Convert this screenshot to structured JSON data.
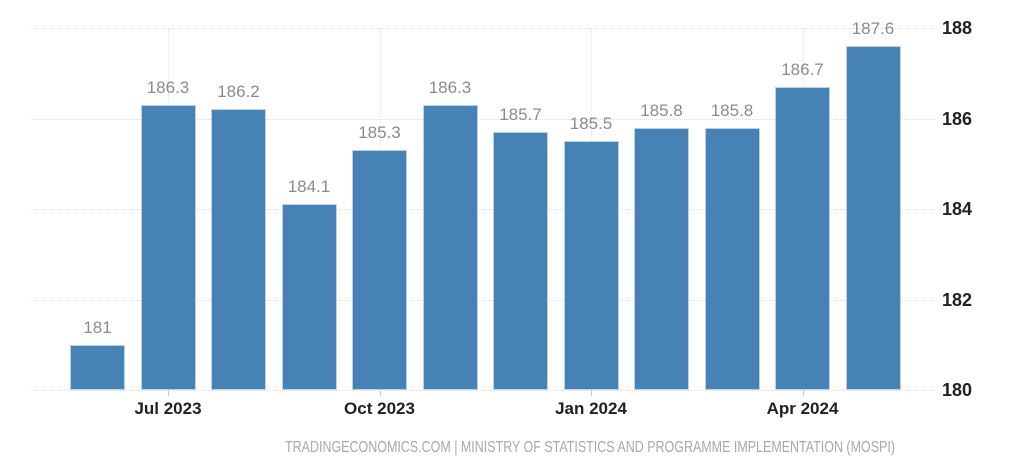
{
  "chart_data": {
    "type": "bar",
    "title": "",
    "xlabel": "",
    "ylabel": "",
    "grid": true,
    "legend": "none",
    "ylim": [
      180,
      188
    ],
    "values": [
      181,
      186.3,
      186.2,
      184.1,
      185.3,
      186.3,
      185.7,
      185.5,
      185.8,
      185.8,
      186.7,
      187.6
    ],
    "bar_value_labels": [
      "181",
      "186.3",
      "186.2",
      "184.1",
      "185.3",
      "186.3",
      "185.7",
      "185.5",
      "185.8",
      "185.8",
      "186.7",
      "187.6"
    ],
    "x_ticks": [
      {
        "bar_index": 1,
        "label": "Jul 2023"
      },
      {
        "bar_index": 4,
        "label": "Oct 2023"
      },
      {
        "bar_index": 7,
        "label": "Jan 2024"
      },
      {
        "bar_index": 10,
        "label": "Apr 2024"
      }
    ],
    "y_ticks": [
      188,
      186,
      184,
      182,
      180
    ],
    "colors": {
      "bar_fill": "#4682b4",
      "bar_border": "#b9d2e7",
      "gridline_h": "#dcdcdc",
      "gridline_v": "#e2e2e2",
      "axis_text": "#212121",
      "value_label_text": "#8b8b8b",
      "tick_mark": "#c9c9c9"
    }
  },
  "footer": {
    "text": "TRADINGECONOMICS.COM | MINISTRY OF STATISTICS AND PROGRAMME IMPLEMENTATION (MOSPI)",
    "color": "#a8a8a8"
  }
}
